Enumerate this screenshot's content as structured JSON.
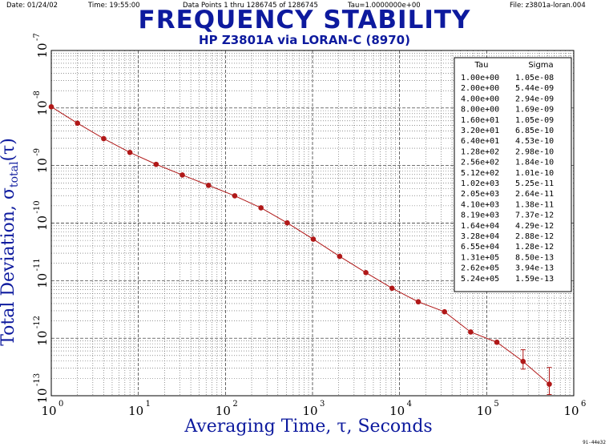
{
  "header": {
    "date": "Date: 01/24/02",
    "time": "Time: 19:55:00",
    "points": "Data Points 1 thru 1286745 of 1286745",
    "tau": "Tau=1.0000000e+00",
    "file": "File: z3801a-loran.004"
  },
  "corner_code": "9i-44e32",
  "chart_data": {
    "type": "line",
    "title": "FREQUENCY STABILITY",
    "subtitle": "HP Z3801A via LORAN-C (8970)",
    "xlabel": "Averaging Time, τ, Seconds",
    "ylabel_main": "Total Deviation, σ",
    "ylabel_sub": "total",
    "ylabel_tail": "(τ)",
    "x_scale": "log",
    "y_scale": "log",
    "xlim": [
      1,
      1000000
    ],
    "ylim": [
      1e-13,
      1e-07
    ],
    "x_ticks": [
      {
        "base": "10",
        "exp": "0"
      },
      {
        "base": "10",
        "exp": "1"
      },
      {
        "base": "10",
        "exp": "2"
      },
      {
        "base": "10",
        "exp": "3"
      },
      {
        "base": "10",
        "exp": "4"
      },
      {
        "base": "10",
        "exp": "5"
      },
      {
        "base": "10",
        "exp": "6"
      }
    ],
    "y_ticks": [
      {
        "base": "10",
        "exp": "-13"
      },
      {
        "base": "10",
        "exp": "-12"
      },
      {
        "base": "10",
        "exp": "-11"
      },
      {
        "base": "10",
        "exp": "-10"
      },
      {
        "base": "10",
        "exp": "-9"
      },
      {
        "base": "10",
        "exp": "-8"
      },
      {
        "base": "10",
        "exp": "-7"
      }
    ],
    "grid": true,
    "legend_position": "top-right",
    "series": [
      {
        "color": "#b01818",
        "x": [
          1,
          2,
          4,
          8,
          16,
          32,
          64,
          128,
          256,
          512,
          1020,
          2050,
          4100,
          8190,
          16400,
          32800,
          65500,
          131000,
          262000,
          524000
        ],
        "y": [
          1.05e-08,
          5.44e-09,
          2.94e-09,
          1.69e-09,
          1.05e-09,
          6.85e-10,
          4.53e-10,
          2.98e-10,
          1.84e-10,
          1.01e-10,
          5.25e-11,
          2.64e-11,
          1.38e-11,
          7.37e-12,
          4.29e-12,
          2.88e-12,
          1.28e-12,
          8.5e-13,
          3.94e-13,
          1.59e-13
        ],
        "error_bar_upper": [
          null,
          null,
          null,
          null,
          null,
          null,
          null,
          null,
          null,
          null,
          null,
          null,
          null,
          null,
          null,
          null,
          null,
          null,
          6.3e-13,
          3.1e-13
        ],
        "error_bar_lower": [
          null,
          null,
          null,
          null,
          null,
          null,
          null,
          null,
          null,
          null,
          null,
          null,
          null,
          null,
          null,
          null,
          null,
          null,
          2.9e-13,
          1.05e-13
        ]
      }
    ],
    "table": {
      "headers": [
        "Tau",
        "Sigma"
      ],
      "rows": [
        [
          "1.00e+00",
          "1.05e-08"
        ],
        [
          "2.00e+00",
          "5.44e-09"
        ],
        [
          "4.00e+00",
          "2.94e-09"
        ],
        [
          "8.00e+00",
          "1.69e-09"
        ],
        [
          "1.60e+01",
          "1.05e-09"
        ],
        [
          "3.20e+01",
          "6.85e-10"
        ],
        [
          "6.40e+01",
          "4.53e-10"
        ],
        [
          "1.28e+02",
          "2.98e-10"
        ],
        [
          "2.56e+02",
          "1.84e-10"
        ],
        [
          "5.12e+02",
          "1.01e-10"
        ],
        [
          "1.02e+03",
          "5.25e-11"
        ],
        [
          "2.05e+03",
          "2.64e-11"
        ],
        [
          "4.10e+03",
          "1.38e-11"
        ],
        [
          "8.19e+03",
          "7.37e-12"
        ],
        [
          "1.64e+04",
          "4.29e-12"
        ],
        [
          "3.28e+04",
          "2.88e-12"
        ],
        [
          "6.55e+04",
          "1.28e-12"
        ],
        [
          "1.31e+05",
          "8.50e-13"
        ],
        [
          "2.62e+05",
          "3.94e-13"
        ],
        [
          "5.24e+05",
          "1.59e-13"
        ]
      ]
    }
  }
}
